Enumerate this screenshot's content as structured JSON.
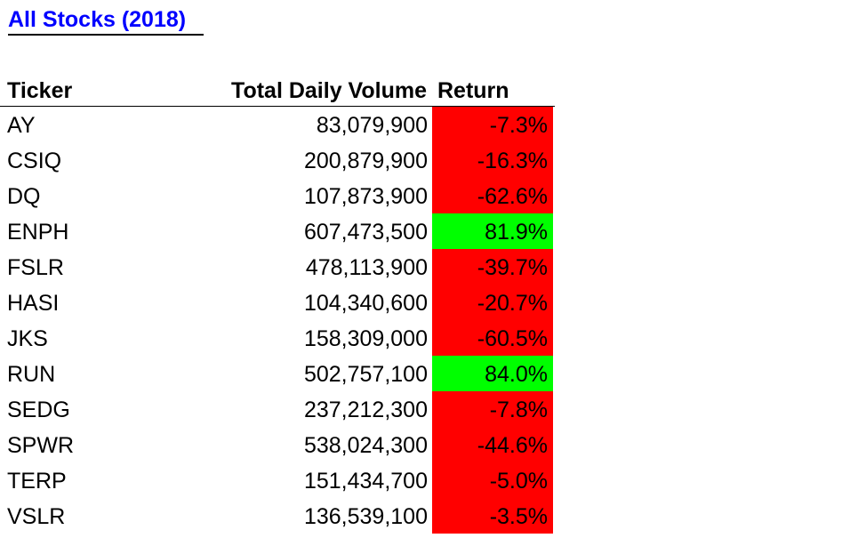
{
  "sheet": {
    "title": "All Stocks (2018)"
  },
  "table": {
    "headers": {
      "ticker": "Ticker",
      "volume": "Total Daily Volume",
      "return": "Return"
    },
    "rows": [
      {
        "ticker": "AY",
        "volume": "83,079,900",
        "return": "-7.3%",
        "status": "negative"
      },
      {
        "ticker": "CSIQ",
        "volume": "200,879,900",
        "return": "-16.3%",
        "status": "negative"
      },
      {
        "ticker": "DQ",
        "volume": "107,873,900",
        "return": "-62.6%",
        "status": "negative"
      },
      {
        "ticker": "ENPH",
        "volume": "607,473,500",
        "return": "81.9%",
        "status": "positive"
      },
      {
        "ticker": "FSLR",
        "volume": "478,113,900",
        "return": "-39.7%",
        "status": "negative"
      },
      {
        "ticker": "HASI",
        "volume": "104,340,600",
        "return": "-20.7%",
        "status": "negative"
      },
      {
        "ticker": "JKS",
        "volume": "158,309,000",
        "return": "-60.5%",
        "status": "negative"
      },
      {
        "ticker": "RUN",
        "volume": "502,757,100",
        "return": "84.0%",
        "status": "positive"
      },
      {
        "ticker": "SEDG",
        "volume": "237,212,300",
        "return": "-7.8%",
        "status": "negative"
      },
      {
        "ticker": "SPWR",
        "volume": "538,024,300",
        "return": "-44.6%",
        "status": "negative"
      },
      {
        "ticker": "TERP",
        "volume": "151,434,700",
        "return": "-5.0%",
        "status": "negative"
      },
      {
        "ticker": "VSLR",
        "volume": "136,539,100",
        "return": "-3.5%",
        "status": "negative"
      }
    ]
  },
  "colors": {
    "title": "#0000ff",
    "negative": "#ff0000",
    "positive": "#00ff00"
  }
}
